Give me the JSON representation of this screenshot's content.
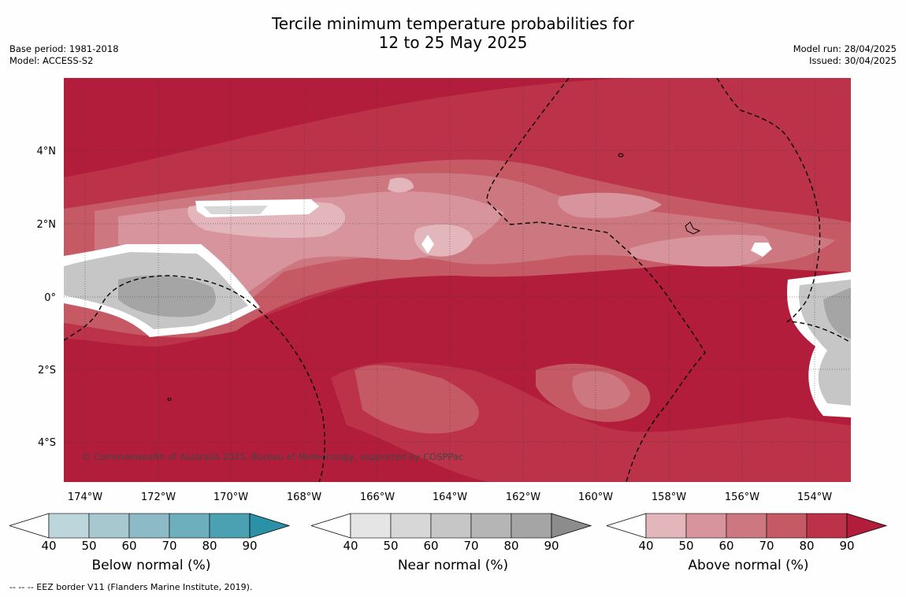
{
  "header": {
    "title_line1": "Tercile minimum temperature probabilities for",
    "title_line2": "12 to 25 May 2025",
    "base_period": "Base period: 1981-2018",
    "model": "Model: ACCESS-S2",
    "model_run": "Model run: 28/04/2025",
    "issued": "Issued: 30/04/2025"
  },
  "map": {
    "lat_labels": [
      "4°N",
      "2°N",
      "0°",
      "2°S",
      "4°S"
    ],
    "lon_labels": [
      "174°W",
      "172°W",
      "170°W",
      "168°W",
      "166°W",
      "164°W",
      "162°W",
      "160°W",
      "158°W",
      "156°W",
      "154°W"
    ],
    "copyright": "© Commonwealth of Australia 2025, Bureau of Meteorology, supported by COSPPac"
  },
  "legends": [
    {
      "title": "Below normal (%)",
      "ticks": [
        "40",
        "50",
        "60",
        "70",
        "80",
        "90"
      ],
      "colors": [
        "#bdd6dc",
        "#a8c8cf",
        "#8cbac6",
        "#6eafbd",
        "#4ba1b1",
        "#2b91a7"
      ]
    },
    {
      "title": "Near normal (%)",
      "ticks": [
        "40",
        "50",
        "60",
        "70",
        "80",
        "90"
      ],
      "colors": [
        "#e5e5e5",
        "#d7d7d7",
        "#c6c6c6",
        "#b5b5b5",
        "#a5a5a5",
        "#8c8c8c"
      ]
    },
    {
      "title": "Above normal (%)",
      "ticks": [
        "40",
        "50",
        "60",
        "70",
        "80",
        "90"
      ],
      "colors": [
        "#e3b6bc",
        "#d8949c",
        "#cd7780",
        "#c55a65",
        "#bc3249",
        "#b11d3a"
      ]
    }
  ],
  "footnote": "--  --  -- EEZ border V11 (Flanders Marine Institute, 2019)."
}
